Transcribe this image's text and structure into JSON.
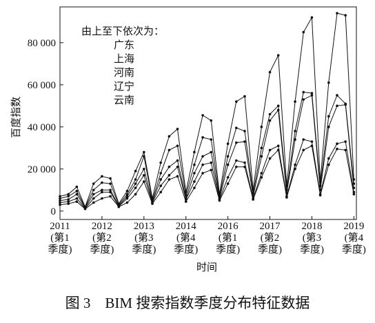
{
  "chart_data": {
    "type": "line",
    "title": "图 3　BIM 搜索指数季度分布特征数据",
    "annotation": "由上至下依次为：",
    "xlabel": "时间",
    "ylabel": "百度指数",
    "x": [
      0,
      1,
      2,
      3,
      4,
      5,
      6,
      7,
      8,
      9,
      10,
      11,
      12,
      13,
      14,
      15,
      16,
      17,
      18,
      19,
      20,
      21,
      22,
      23,
      24,
      25,
      26,
      27,
      28,
      29,
      30,
      31,
      32,
      33,
      34,
      35
    ],
    "xlim": [
      0,
      35.3
    ],
    "xticks": [
      {
        "value": 0,
        "label": "2011\n(第1\n季度)"
      },
      {
        "value": 5,
        "label": "2012\n(第2\n季度)"
      },
      {
        "value": 10,
        "label": "2013\n(第3\n季度)"
      },
      {
        "value": 15,
        "label": "2014\n(第4\n季度)"
      },
      {
        "value": 20,
        "label": "2016\n(第1\n季度)"
      },
      {
        "value": 25,
        "label": "2017\n(第2\n季度)"
      },
      {
        "value": 30,
        "label": "2018\n(第3\n季度)"
      },
      {
        "value": 35,
        "label": "2019\n(第4\n季度)"
      }
    ],
    "ylim": [
      -4000,
      97000
    ],
    "yticks": [
      0,
      {
        "value": 20000,
        "label": "20 000"
      },
      {
        "value": 40000,
        "label": "40 000"
      },
      {
        "value": 60000,
        "label": "60 000"
      },
      {
        "value": 80000,
        "label": "80 000"
      }
    ],
    "series": [
      {
        "name": "广东",
        "color": "#111111",
        "values": [
          7000,
          8000,
          11500,
          2000,
          13000,
          16500,
          15500,
          3500,
          9500,
          19000,
          28000,
          6000,
          23000,
          35500,
          39000,
          9000,
          28000,
          45500,
          43000,
          8000,
          32000,
          52000,
          54500,
          10000,
          40000,
          66000,
          74000,
          12000,
          52000,
          85000,
          92000,
          14000,
          61000,
          94000,
          93000,
          15000
        ]
      },
      {
        "name": "上海",
        "color": "#111111",
        "values": [
          6000,
          7000,
          9500,
          1800,
          10000,
          13500,
          13000,
          3000,
          8000,
          15000,
          26000,
          5000,
          18000,
          29000,
          31000,
          7500,
          22000,
          35000,
          34000,
          7000,
          26000,
          39500,
          38000,
          8500,
          30000,
          46000,
          50000,
          10000,
          38000,
          56500,
          56000,
          12000,
          45000,
          55000,
          51000,
          13000
        ]
      },
      {
        "name": "河南",
        "color": "#111111",
        "values": [
          5000,
          5500,
          8000,
          1500,
          8000,
          10000,
          10000,
          2500,
          7000,
          13000,
          20000,
          4500,
          15000,
          21000,
          24000,
          6000,
          18000,
          26000,
          28000,
          6000,
          22000,
          32500,
          33000,
          7000,
          26000,
          43000,
          48000,
          8500,
          34000,
          53000,
          55000,
          10000,
          40000,
          50000,
          50500,
          11000
        ]
      },
      {
        "name": "辽宁",
        "color": "#111111",
        "values": [
          4000,
          4500,
          6000,
          1200,
          6000,
          9000,
          9000,
          2200,
          6000,
          11000,
          17000,
          4000,
          12000,
          17000,
          21000,
          5500,
          14000,
          22000,
          23000,
          5500,
          16000,
          24000,
          23000,
          6000,
          18000,
          29000,
          31000,
          7000,
          22000,
          34000,
          33000,
          8000,
          25000,
          32000,
          33000,
          9000
        ]
      },
      {
        "name": "云南",
        "color": "#111111",
        "values": [
          3000,
          3500,
          4500,
          1000,
          4000,
          6000,
          7000,
          2000,
          4000,
          8000,
          14000,
          3500,
          9000,
          15000,
          16500,
          4500,
          11000,
          18000,
          19500,
          5000,
          13000,
          21000,
          21000,
          5500,
          16000,
          25000,
          29000,
          6500,
          20000,
          29000,
          31000,
          7500,
          22000,
          29500,
          29000,
          8000
        ]
      }
    ]
  }
}
